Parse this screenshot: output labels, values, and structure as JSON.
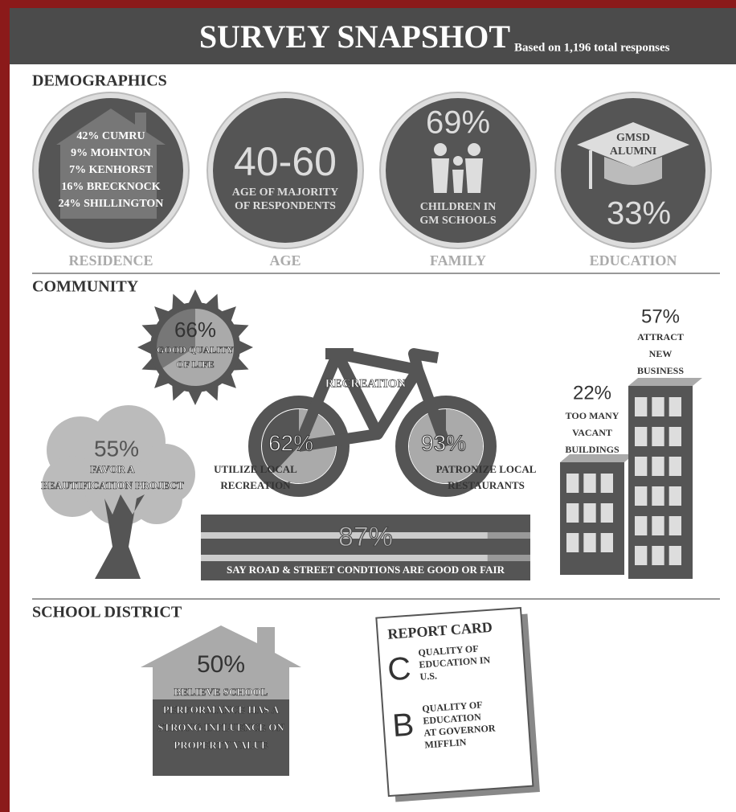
{
  "header": {
    "title": "SURVEY SNAPSHOT",
    "subtitle": "Based on 1,196 total responses"
  },
  "demographics": {
    "heading": "DEMOGRAPHICS",
    "residence": {
      "lines": [
        "42% CUMRU",
        "9% MOHNTON",
        "7% KENHORST",
        "16% BRECKNOCK",
        "24% SHILLINGTON"
      ],
      "label": "RESIDENCE"
    },
    "age": {
      "figure": "40-60",
      "lines": [
        "AGE OF MAJORITY",
        "OF RESPONDENTS"
      ],
      "label": "AGE"
    },
    "family": {
      "figure": "69%",
      "lines": [
        "CHILDREN IN",
        "GM SCHOOLS"
      ],
      "label": "FAMILY"
    },
    "education": {
      "lines": [
        "GMSD",
        "ALUMNI"
      ],
      "figure": "33%",
      "label": "EDUCATION"
    }
  },
  "community": {
    "heading": "COMMUNITY",
    "quality_of_life": {
      "value": 66,
      "label": "66%",
      "lines": [
        "GOOD QUALITY",
        "OF LIFE"
      ]
    },
    "bike_title": "RECREATION",
    "local_recreation": {
      "value": 62,
      "label": "62%",
      "lines": [
        "UTILIZE LOCAL",
        "RECREATION"
      ]
    },
    "local_restaurants": {
      "value": 93,
      "label": "93%",
      "lines": [
        "PATRONIZE LOCAL",
        "RESTAURANTS"
      ]
    },
    "beautification": {
      "figure": "55%",
      "lines": [
        "FAVOR A",
        "BEAUTIFICATION PROJECT"
      ]
    },
    "roads": {
      "value": 87,
      "label": "87%",
      "text": "SAY ROAD & STREET CONDTIONS ARE GOOD OR FAIR"
    },
    "vacant": {
      "figure": "22%",
      "lines": [
        "TOO MANY",
        "VACANT",
        "BUILDINGS"
      ]
    },
    "new_business": {
      "figure": "57%",
      "lines": [
        "ATTRACT",
        "NEW",
        "BUSINESS"
      ]
    }
  },
  "school_district": {
    "heading": "SCHOOL DISTRICT",
    "property": {
      "figure": "50%",
      "lines": [
        "BELIEVE SCHOOL",
        "PERFORMANCE HAS A",
        "STRONG INFLUENCE ON",
        "PROPERTY VALUE"
      ]
    },
    "report_card": {
      "title": "REPORT CARD",
      "grades": [
        {
          "grade": "C",
          "lines": [
            "QUALITY OF",
            "EDUCATION IN",
            "U.S."
          ]
        },
        {
          "grade": "B",
          "lines": [
            "QUALITY OF",
            "EDUCATION",
            "AT GOVERNOR",
            "MIFFLIN"
          ]
        }
      ]
    }
  }
}
